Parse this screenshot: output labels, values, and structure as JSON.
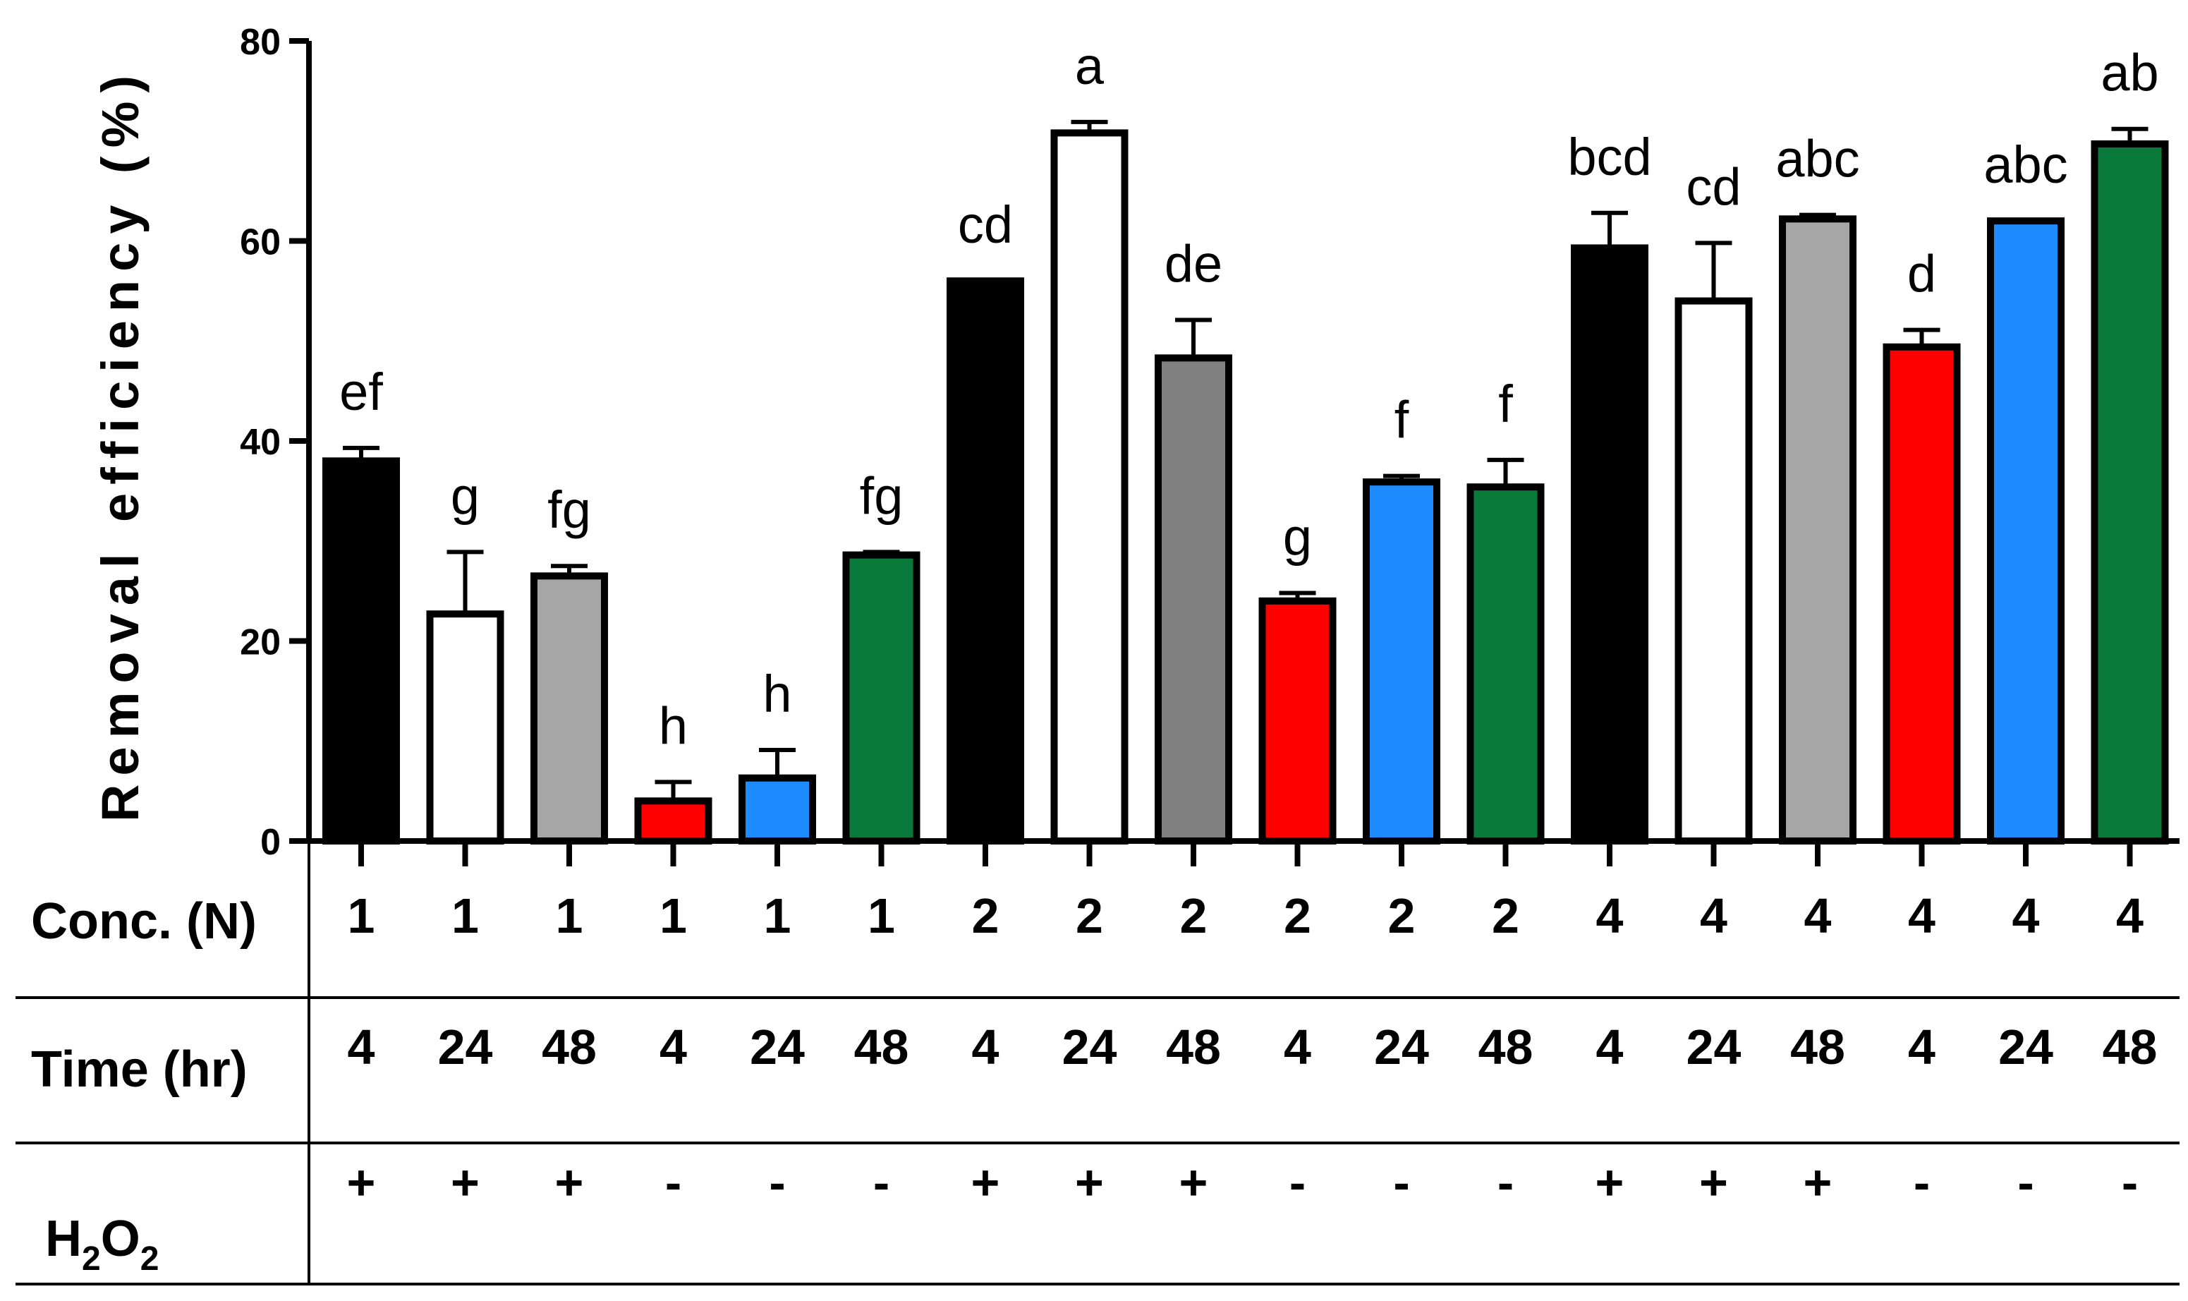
{
  "chart_data": {
    "type": "bar",
    "title": "",
    "ylabel": "Removal efficiency (%)",
    "xlabel": "",
    "ylim": [
      0,
      80
    ],
    "yticks": [
      "0",
      "20",
      "40",
      "60",
      "80"
    ],
    "grid": false,
    "bars": [
      {
        "conc": "1",
        "time": "4",
        "h2o2": "+",
        "value": 38.0,
        "error": 1.3,
        "letter": "ef",
        "color": "#000000"
      },
      {
        "conc": "1",
        "time": "24",
        "h2o2": "+",
        "value": 22.7,
        "error": 6.2,
        "letter": "g",
        "color": "#ffffff"
      },
      {
        "conc": "1",
        "time": "48",
        "h2o2": "+",
        "value": 26.5,
        "error": 1.0,
        "letter": "fg",
        "color": "#a6a6a6"
      },
      {
        "conc": "1",
        "time": "4",
        "h2o2": "-",
        "value": 4.0,
        "error": 1.9,
        "letter": "h",
        "color": "#ff0000"
      },
      {
        "conc": "1",
        "time": "24",
        "h2o2": "-",
        "value": 6.3,
        "error": 2.8,
        "letter": "h",
        "color": "#1e8cff"
      },
      {
        "conc": "1",
        "time": "48",
        "h2o2": "-",
        "value": 28.6,
        "error": 0.3,
        "letter": "fg",
        "color": "#0a7a3a"
      },
      {
        "conc": "2",
        "time": "4",
        "h2o2": "+",
        "value": 56.0,
        "error": 0.0,
        "letter": "cd",
        "color": "#000000"
      },
      {
        "conc": "2",
        "time": "24",
        "h2o2": "+",
        "value": 70.8,
        "error": 1.1,
        "letter": "a",
        "color": "#ffffff"
      },
      {
        "conc": "2",
        "time": "48",
        "h2o2": "+",
        "value": 48.3,
        "error": 3.8,
        "letter": "de",
        "color": "#808080"
      },
      {
        "conc": "2",
        "time": "4",
        "h2o2": "-",
        "value": 24.0,
        "error": 0.8,
        "letter": "g",
        "color": "#ff0000"
      },
      {
        "conc": "2",
        "time": "24",
        "h2o2": "-",
        "value": 35.9,
        "error": 0.6,
        "letter": "f",
        "color": "#1e8cff"
      },
      {
        "conc": "2",
        "time": "48",
        "h2o2": "-",
        "value": 35.4,
        "error": 2.7,
        "letter": "f",
        "color": "#0a7a3a"
      },
      {
        "conc": "4",
        "time": "4",
        "h2o2": "+",
        "value": 59.3,
        "error": 3.5,
        "letter": "bcd",
        "color": "#000000"
      },
      {
        "conc": "4",
        "time": "24",
        "h2o2": "+",
        "value": 54.0,
        "error": 5.8,
        "letter": "cd",
        "color": "#ffffff"
      },
      {
        "conc": "4",
        "time": "48",
        "h2o2": "+",
        "value": 62.2,
        "error": 0.4,
        "letter": "abc",
        "color": "#a6a6a6"
      },
      {
        "conc": "4",
        "time": "4",
        "h2o2": "-",
        "value": 49.4,
        "error": 1.7,
        "letter": "d",
        "color": "#ff0000"
      },
      {
        "conc": "4",
        "time": "24",
        "h2o2": "-",
        "value": 62.0,
        "error": 0.0,
        "letter": "abc",
        "color": "#1e8cff"
      },
      {
        "conc": "4",
        "time": "48",
        "h2o2": "-",
        "value": 69.7,
        "error": 1.5,
        "letter": "ab",
        "color": "#0a7a3a"
      }
    ]
  },
  "table": {
    "conc_label": "Conc. (N)",
    "time_label": "Time (hr)",
    "h2o2_label_main": "H",
    "h2o2_sub1": "2",
    "h2o2_mid": "O",
    "h2o2_sub2": "2"
  }
}
